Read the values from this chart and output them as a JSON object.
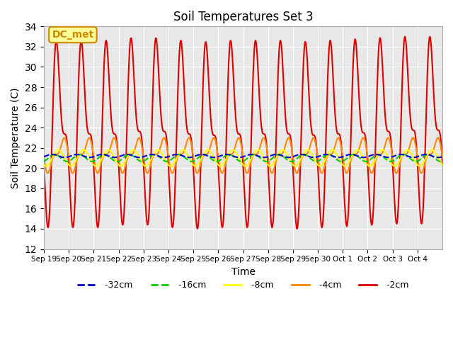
{
  "title": "Soil Temperatures Set 3",
  "xlabel": "Time",
  "ylabel": "Soil Temperature (C)",
  "ylim": [
    12,
    34
  ],
  "yticks": [
    12,
    14,
    16,
    18,
    20,
    22,
    24,
    26,
    28,
    30,
    32,
    34
  ],
  "bg_color": "#e8e8e8",
  "fig_color": "#ffffff",
  "annotation_text": "DC_met",
  "annotation_bg": "#ffff99",
  "annotation_border": "#cc8800",
  "series": {
    "-32cm": {
      "color": "#0000cc",
      "linewidth": 1.5,
      "linestyle": "--",
      "zorder": 5
    },
    "-16cm": {
      "color": "#00cc00",
      "linewidth": 1.5,
      "linestyle": "--",
      "zorder": 4
    },
    "-8cm": {
      "color": "#ffff00",
      "linewidth": 1.5,
      "linestyle": "-",
      "zorder": 3
    },
    "-4cm": {
      "color": "#ff8800",
      "linewidth": 1.5,
      "linestyle": "-",
      "zorder": 2
    },
    "-2cm": {
      "color": "#dd0000",
      "linewidth": 1.5,
      "linestyle": "-",
      "zorder": 1
    }
  },
  "x_tick_labels": [
    "Sep 19",
    "Sep 20",
    "Sep 21",
    "Sep 22",
    "Sep 23",
    "Sep 24",
    "Sep 25",
    "Sep 26",
    "Sep 27",
    "Sep 28",
    "Sep 29",
    "Sep 30",
    "Oct 1",
    "Oct 2",
    "Oct 3",
    "Oct 4"
  ]
}
